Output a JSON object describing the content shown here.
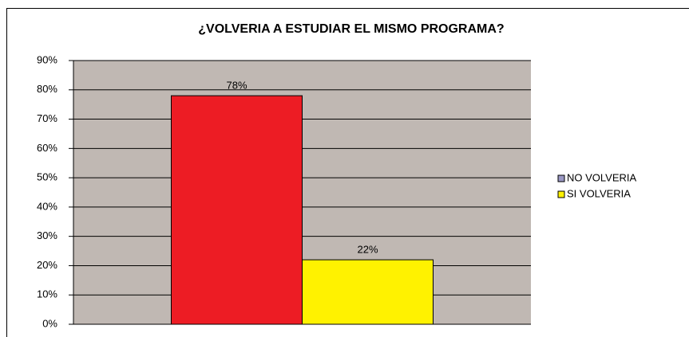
{
  "chart_data": {
    "type": "bar",
    "title": "¿VOLVERIA A ESTUDIAR EL MISMO PROGRAMA?",
    "series": [
      {
        "name": "NO VOLVERIA",
        "color": "#ed1c24",
        "legend_color": "#9a98c4",
        "values": [
          78
        ],
        "value_labels": [
          "78%"
        ]
      },
      {
        "name": "SI VOLVERIA",
        "color": "#fff200",
        "legend_color": "#fff200",
        "values": [
          22
        ],
        "value_labels": [
          "22%"
        ]
      }
    ],
    "ylim": [
      0,
      90
    ],
    "yticks": [
      {
        "value": 0,
        "label": "0%"
      },
      {
        "value": 10,
        "label": "10%"
      },
      {
        "value": 20,
        "label": "20%"
      },
      {
        "value": 30,
        "label": "30%"
      },
      {
        "value": 40,
        "label": "40%"
      },
      {
        "value": 50,
        "label": "50%"
      },
      {
        "value": 60,
        "label": "60%"
      },
      {
        "value": 70,
        "label": "70%"
      },
      {
        "value": 80,
        "label": "80%"
      },
      {
        "value": 90,
        "label": "90%"
      }
    ],
    "grid": true,
    "legend": "right",
    "plot_background": "#c0b8b3"
  }
}
